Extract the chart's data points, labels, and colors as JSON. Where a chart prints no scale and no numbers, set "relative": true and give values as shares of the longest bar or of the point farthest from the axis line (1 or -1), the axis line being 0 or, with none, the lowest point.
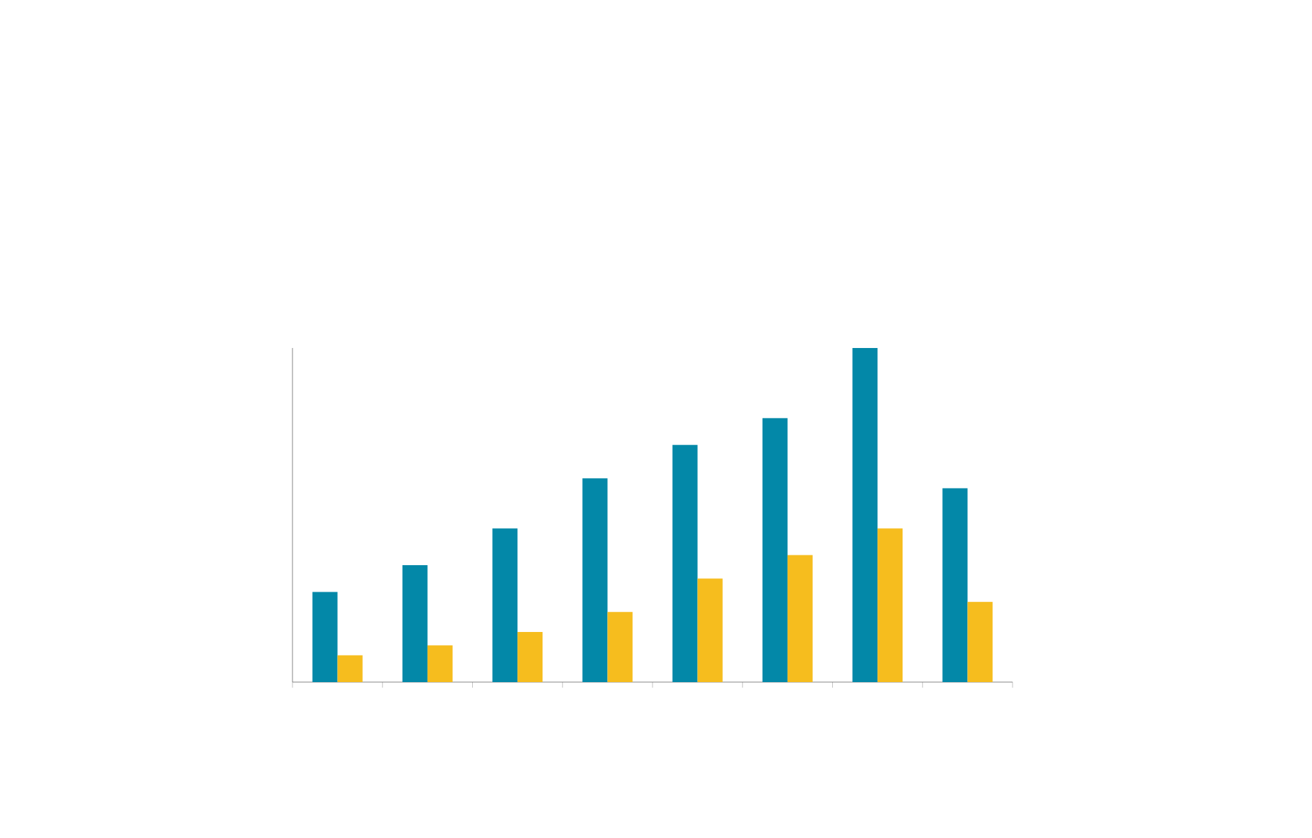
{
  "chart_data": {
    "type": "bar",
    "relative": true,
    "categories": [
      null,
      null,
      null,
      null,
      null,
      null,
      null,
      null
    ],
    "series": [
      {
        "color": "#0388a8",
        "values": [
          0.27,
          0.35,
          0.46,
          0.61,
          0.71,
          0.79,
          1,
          0.58
        ]
      },
      {
        "color": "#f6bd1e",
        "values": [
          0.08,
          0.11,
          0.15,
          0.21,
          0.31,
          0.38,
          0.46,
          0.24
        ]
      }
    ],
    "grid": false
  }
}
